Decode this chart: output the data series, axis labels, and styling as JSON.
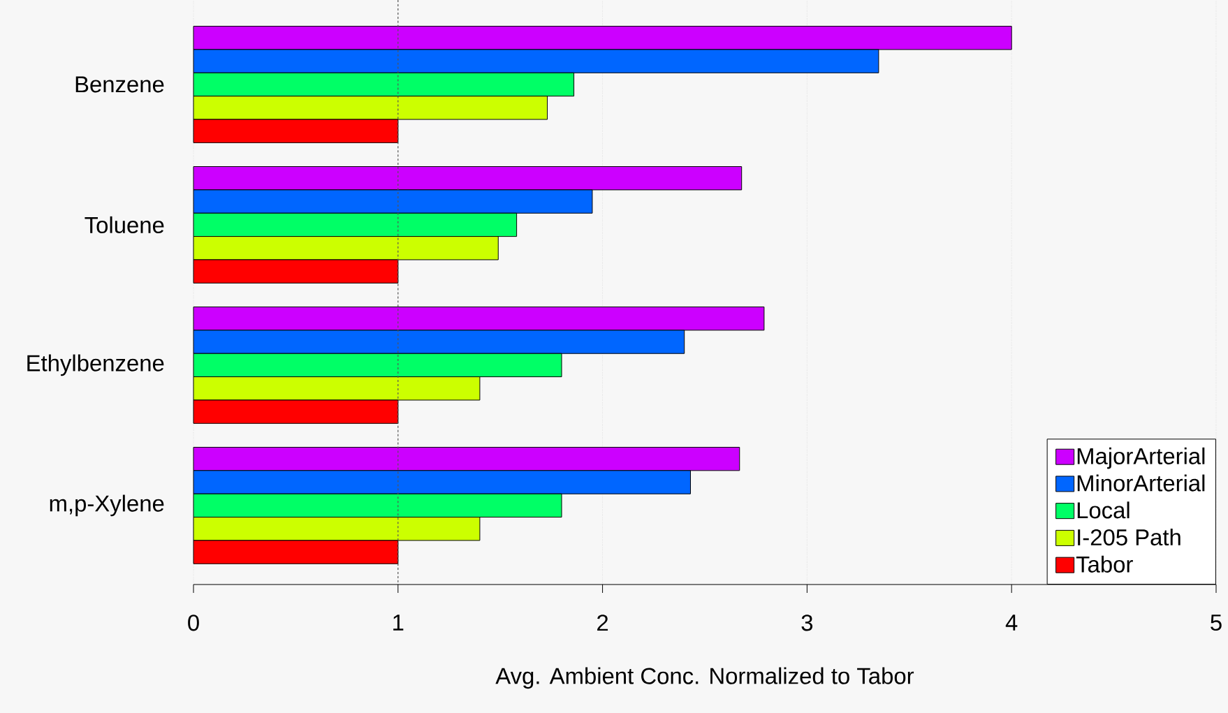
{
  "chart_data": {
    "type": "bar",
    "orientation": "horizontal",
    "categories": [
      "Benzene",
      "Toluene",
      "Ethylbenzene",
      "m,p-Xylene"
    ],
    "series": [
      {
        "name": "MajorArterial",
        "color": "#cc00ff",
        "values": [
          4.0,
          2.68,
          2.79,
          2.67
        ]
      },
      {
        "name": "MinorArterial",
        "color": "#0066ff",
        "values": [
          3.35,
          1.95,
          2.4,
          2.43
        ]
      },
      {
        "name": "Local",
        "color": "#00ff66",
        "values": [
          1.86,
          1.58,
          1.8,
          1.8
        ]
      },
      {
        "name": "I-205 Path",
        "color": "#ccff00",
        "values": [
          1.73,
          1.49,
          1.4,
          1.4
        ]
      },
      {
        "name": "Tabor",
        "color": "#ff0000",
        "values": [
          1,
          1,
          1,
          1
        ]
      }
    ],
    "xlabel": "Avg. Ambient Conc. Normalized to Tabor",
    "xlim": [
      0,
      5
    ],
    "xticks": [
      0,
      1,
      2,
      3,
      4,
      5
    ],
    "grid": "x",
    "legend": "bottom right",
    "ref_lines": [
      {
        "axis": "x",
        "value": 1,
        "color": "#555555",
        "line_style": "dashed"
      }
    ]
  }
}
